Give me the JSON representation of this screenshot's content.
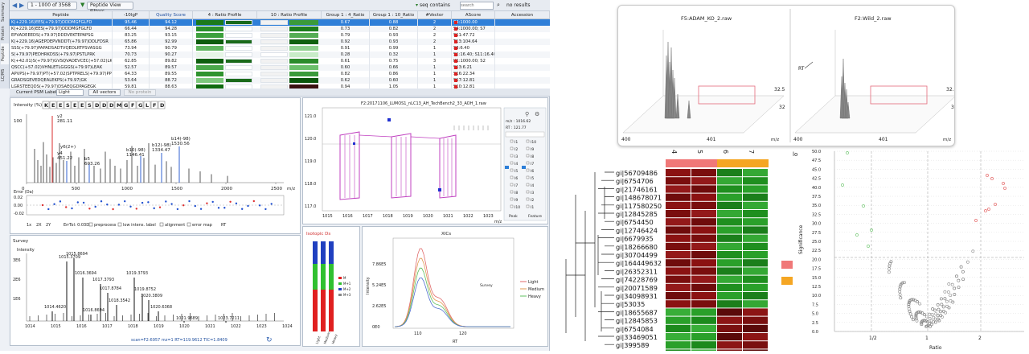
{
  "app": {
    "side_tabs": [
      "Summary",
      "Protein",
      "Peptide",
      "LC/MS"
    ],
    "toolbar": {
      "page_range": "1 - 1000 of 3568",
      "filter_button": "Peptide View Filters",
      "search_mode": "seq contains",
      "search_placeholder": "search",
      "results": "no results"
    },
    "table": {
      "columns": [
        "Peptide",
        "-10lgP",
        "Quality Score",
        "4 : Ratio Profile",
        "10 : Ratio Profile",
        "Group 1 : 4_Ratio",
        "Group 1 : 10_Ratio",
        "#Vector",
        "AScore",
        "Accession"
      ],
      "rows": [
        {
          "peptide": "K(+229.16)EES(+79.97)DDDMGFGLFD",
          "lgp": "95.46",
          "qs": "94.12",
          "r4": "0.67",
          "r10": "0.88",
          "vec": "2",
          "ascore": "S4:1000.00"
        },
        {
          "peptide": "K(+229.16)EES(+79.97)DDDMGFGLFD",
          "lgp": "66.44",
          "qs": "94.28",
          "r4": "0.73",
          "r10": "0.82",
          "vec": "2",
          "ascore": "S4:1000.00; S7"
        },
        {
          "peptide": "EPVADEEEDS(+79.97)DDDVEKTEPAPSG",
          "lgp": "83.25",
          "qs": "93.15",
          "r4": "0.79",
          "r10": "0.93",
          "vec": "2",
          "ascore": "S11:47.72"
        },
        {
          "peptide": "K(+229.16)AGEPDEPVNDDT(+79.97)DDLFDSR",
          "lgp": "65.86",
          "qs": "92.99",
          "r4": "0.92",
          "r10": "0.93",
          "vec": "2",
          "ascore": "T13:104.64"
        },
        {
          "peptide": "SSS(+79.97)PAPADSADTVQEDLRTPSVASGG",
          "lgp": "73.94",
          "qs": "90.79",
          "r4": "0.91",
          "r10": "0.99",
          "vec": "1",
          "ascore": "S3:6.40"
        },
        {
          "peptide": "S(+79.97)PEDHRKDSS(+79.97)PSTLPRK",
          "lgp": "70.73",
          "qs": "90.27",
          "r4": "0.28",
          "r10": "0.32",
          "vec": "1",
          "ascore": "S1:16.40; S11:16.40"
        },
        {
          "peptide": "K(+42.01)S(+79.97)GVSQVADEVCEC(+57.02)LK",
          "lgp": "62.85",
          "qs": "89.82",
          "r4": "0.61",
          "r10": "0.75",
          "vec": "3",
          "ascore": "K1:1000.00; S2"
        },
        {
          "peptide": "QSCC(+57.02)VHNLETLGGGS(+79.97)LEAK",
          "lgp": "52.57",
          "qs": "89.57",
          "r4": "0.60",
          "r10": "0.66",
          "vec": "1",
          "ascore": "S13:6.21"
        },
        {
          "peptide": "APVPS(+79.97)PT(+57.02)SPTPRELS(+79.97)PPS",
          "lgp": "64.33",
          "qs": "89.55",
          "r4": "0.82",
          "r10": "0.86",
          "vec": "1",
          "ascore": "S16:22.34"
        },
        {
          "peptide": "GRADSGEVEDQEALEKPS(+79.97)GK",
          "lgp": "53.64",
          "qs": "88.72",
          "r4": "0.62",
          "r10": "0.60",
          "vec": "1",
          "ascore": "S17:12.81"
        },
        {
          "peptide": "LGRSTEEQDS(+79.97)DSAEQGDPAGEGK",
          "lgp": "59.81",
          "qs": "88.63",
          "r4": "0.94",
          "r10": "1.05",
          "vec": "1",
          "ascore": "S10:12.81"
        }
      ]
    },
    "subtoolbar": {
      "label": "Current PSM Label:",
      "label_value": "Light",
      "btn1": "All vectors",
      "btn2": "No protein"
    },
    "spectrum": {
      "ylabel": "Intensity (%)",
      "y_top": "100",
      "sequence": [
        "K",
        "E",
        "E",
        "S",
        "E",
        "E",
        "S",
        "D",
        "D",
        "D",
        "M",
        "G",
        "F",
        "G",
        "L",
        "F",
        "D"
      ],
      "peak_labels": [
        {
          "t": "y2",
          "v": "281.11"
        },
        {
          "t": "y6(2+)",
          "v": ""
        },
        {
          "t": "y4",
          "v": "451.22"
        },
        {
          "t": "b5",
          "v": "603.26"
        },
        {
          "t": "b10(-98)",
          "v": "1146.41"
        },
        {
          "t": "b12(-98)",
          "v": "1334.47"
        },
        {
          "t": "b14(-98)",
          "v": "1530.56"
        }
      ],
      "x_ticks": [
        "0",
        "500",
        "1000",
        "1500",
        "2000",
        "2500"
      ],
      "x_unit": "m/z",
      "err_label": "Error (Da)",
      "err_ticks": [
        "0.02",
        "0.00",
        "-0.02"
      ],
      "controls": [
        "1x",
        "2X",
        "2Y",
        "ErrTol: 0.03Da",
        "preprocess",
        "low intens. label",
        "alignment",
        "error map",
        "RT"
      ]
    },
    "survey": {
      "title": "Survey",
      "ylabel": "Intensity",
      "y_ticks": [
        "3E6",
        "2E6",
        "1E6"
      ],
      "peaks": [
        "1015.3709",
        "1015.8694",
        "1016.3694",
        "1017.3793",
        "1017.8784",
        "1018.3542",
        "1019.3793",
        "1019.8752",
        "1020.3809",
        "1020.6368",
        "1021.9689",
        "1023.7211",
        "1014.4620",
        "1016.8694"
      ],
      "x_ticks": [
        "1014",
        "1015",
        "1016",
        "1017",
        "1018",
        "1019",
        "1020",
        "1021",
        "1022",
        "1023",
        "1024"
      ],
      "status": "scan=F2:6957 mz=1 RT=119.9612 TIC=1.8409"
    },
    "lcms": {
      "title": "F2:20171106_LUMOS1_nLC13_AH_TechBench2_33_AOH_1.raw",
      "y_ticks": [
        "121.0",
        "120.0",
        "119.0",
        "118.0",
        "117.0"
      ],
      "x_ticks": [
        "1015",
        "1016",
        "1017",
        "1018",
        "1019",
        "1020",
        "1021",
        "1022",
        "1023"
      ],
      "x_unit": "m/z",
      "mz": "m/z : 1016.62",
      "rt": "RT : 121.77",
      "peak_col": [
        "I1",
        "I2",
        "I3",
        "I4",
        "I5",
        "I6",
        "I7",
        "I8",
        "I9",
        "I10"
      ],
      "feature_col": [
        "I10",
        "I9",
        "I8",
        "I7",
        "I6",
        "I5",
        "I4",
        "I3",
        "I2",
        "I1"
      ],
      "foot": [
        "Peak",
        "Feature"
      ]
    },
    "isotopic": {
      "title": "Isotopic Ds",
      "legend": [
        "M",
        "M+1",
        "M+2",
        "M+3"
      ],
      "bars": [
        "Light",
        "Medium",
        "Heavy"
      ]
    },
    "xic": {
      "title": "XICs",
      "ylabel": "Intensity",
      "xlabel": "RT",
      "y_ticks": [
        "7.86E5",
        "5.24E5",
        "2.62E5",
        "0E0"
      ],
      "x_ticks": [
        "110",
        "120"
      ],
      "legend": [
        "Light",
        "Medium",
        "Heavy"
      ],
      "inner_label": "Survey"
    }
  },
  "spec3d": {
    "left_title": "F5:ADAM_KO_2.raw",
    "right_title": "F2:Wild_2.raw",
    "left_ticks": [
      "400",
      "401"
    ],
    "right_ticks": [
      "400",
      "401"
    ],
    "y_ticks": [
      "32.5",
      "32"
    ],
    "rt_label": "RT",
    "mz_label": "m/z"
  },
  "heatmap": {
    "columns": [
      "4",
      "5",
      "6",
      "7"
    ],
    "rows": [
      "gi|56709486",
      "gi|6754706",
      "gi|21746161",
      "gi|148678071",
      "gi|117580250",
      "gi|12845285",
      "gi|6754450",
      "gi|12746424",
      "gi|6679935",
      "gi|18266680",
      "gi|30704499",
      "gi|164449632",
      "gi|26352311",
      "gi|74228769",
      "gi|20071589",
      "gi|34098931",
      "gi|53035",
      "gi|18655687",
      "gi|12845853",
      "gi|6754084",
      "gi|33469051",
      "gi|399589",
      "gi|200425"
    ],
    "group_colors": [
      "#f07878",
      "#f5a623"
    ],
    "corner_label": "lo"
  },
  "volcano": {
    "ylabel": "Significance",
    "xlabel": "Ratio",
    "y_ticks": [
      "50.0",
      "47.5",
      "45.0",
      "42.5",
      "40.0",
      "37.5",
      "35.0",
      "32.5",
      "30.0",
      "27.5",
      "25.0",
      "22.5",
      "20.0",
      "17.5",
      "15.0",
      "12.5",
      "10.0",
      "7.5",
      "5.0",
      "2.5",
      "0.0"
    ],
    "x_ticks": [
      "1/2",
      "1",
      "2"
    ]
  }
}
